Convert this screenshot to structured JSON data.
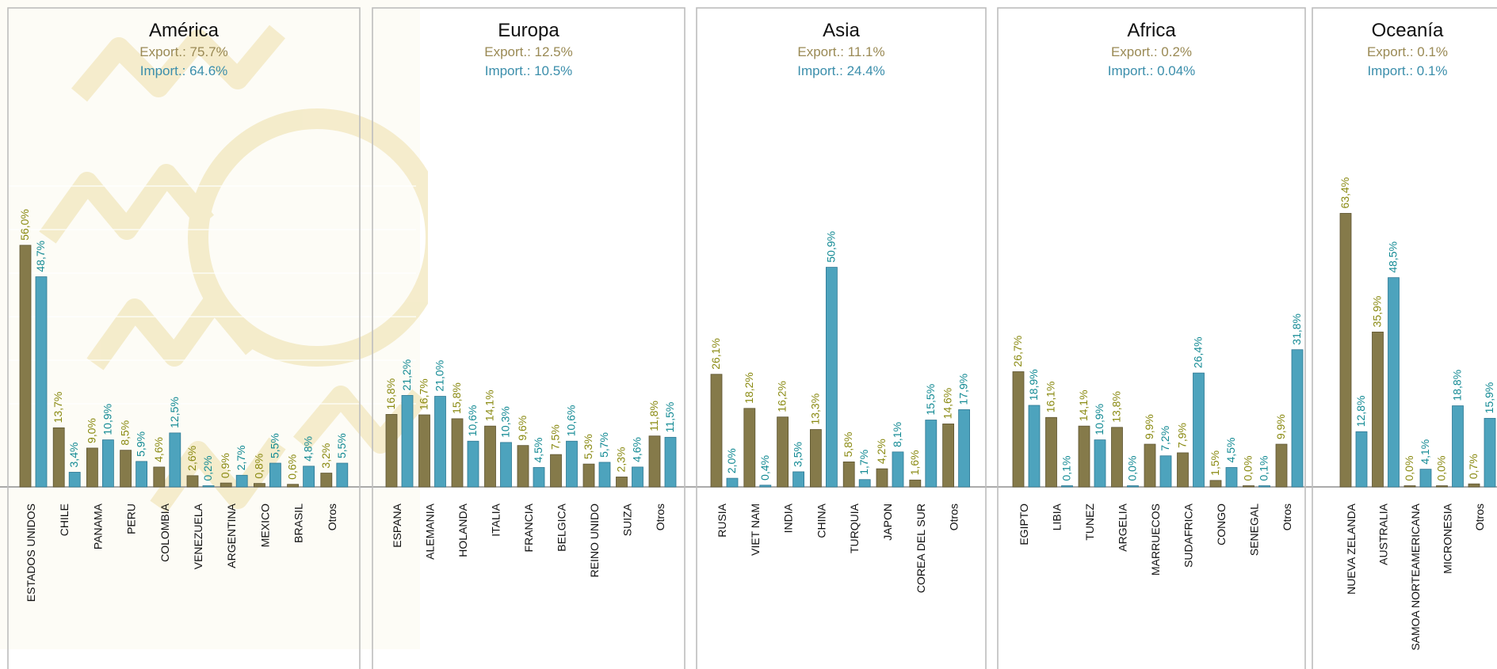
{
  "colors": {
    "export": "#857a4a",
    "import": "#4da3bd",
    "export_label": "#8a8a12",
    "import_label": "#138a94"
  },
  "chart_data": [
    {
      "type": "bar",
      "title": "América",
      "export_label": "Export.:  75.7%",
      "import_label": "Import.: 64.6%",
      "categories": [
        "ESTADOS UNIDOS",
        "CHILE",
        "PANAMA",
        "PERU",
        "COLOMBIA",
        "VENEZUELA",
        "ARGENTINA",
        "MEXICO",
        "BRASIL",
        "Otros"
      ],
      "series": [
        {
          "values": [
            56.0,
            13.7,
            9.0,
            8.5,
            4.6,
            2.6,
            0.9,
            0.8,
            0.6,
            3.2
          ],
          "labels": [
            "56,0%",
            "13,7%",
            "9,0%",
            "8,5%",
            "4,6%",
            "2,6%",
            "0,9%",
            "0,8%",
            "0,6%",
            "3,2%"
          ]
        },
        {
          "values": [
            48.7,
            3.4,
            10.9,
            5.9,
            12.5,
            0.2,
            2.7,
            5.5,
            4.8,
            5.5
          ],
          "labels": [
            "48,7%",
            "3,4%",
            "10,9%",
            "5,9%",
            "12,5%",
            "0,2%",
            "2,7%",
            "5,5%",
            "4,8%",
            "5,5%"
          ]
        }
      ]
    },
    {
      "type": "bar",
      "title": "Europa",
      "export_label": "Export.: 12.5%",
      "import_label": "Import.: 10.5%",
      "categories": [
        "ESPANA",
        "ALEMANIA",
        "HOLANDA",
        "ITALIA",
        "FRANCIA",
        "BELGICA",
        "REINO UNIDO",
        "SUIZA",
        "Otros"
      ],
      "series": [
        {
          "values": [
            16.8,
            16.7,
            15.8,
            14.1,
            9.6,
            7.5,
            5.3,
            2.3,
            11.8
          ],
          "labels": [
            "16,8%",
            "16,7%",
            "15,8%",
            "14,1%",
            "9,6%",
            "7,5%",
            "5,3%",
            "2,3%",
            "11,8%"
          ]
        },
        {
          "values": [
            21.2,
            21.0,
            10.6,
            10.3,
            4.5,
            10.6,
            5.7,
            4.6,
            11.5
          ],
          "labels": [
            "21,2%",
            "21,0%",
            "10,6%",
            "10,3%",
            "4,5%",
            "10,6%",
            "5,7%",
            "4,6%",
            "11,5%"
          ]
        }
      ]
    },
    {
      "type": "bar",
      "title": "Asia",
      "export_label": "Export.: 11.1%",
      "import_label": "Import.: 24.4%",
      "categories": [
        "RUSIA",
        "VIET NAM",
        "INDIA",
        "CHINA",
        "TURQUIA",
        "JAPON",
        "COREA DEL SUR",
        "Otros"
      ],
      "series": [
        {
          "values": [
            26.1,
            18.2,
            16.2,
            13.3,
            5.8,
            4.2,
            1.6,
            14.6
          ],
          "labels": [
            "26,1%",
            "18,2%",
            "16,2%",
            "13,3%",
            "5,8%",
            "4,2%",
            "1,6%",
            "14,6%"
          ]
        },
        {
          "values": [
            2.0,
            0.4,
            3.5,
            50.9,
            1.7,
            8.1,
            15.5,
            17.9
          ],
          "labels": [
            "2,0%",
            "0,4%",
            "3,5%",
            "50,9%",
            "1,7%",
            "8,1%",
            "15,5%",
            "17,9%"
          ]
        }
      ]
    },
    {
      "type": "bar",
      "title": "Africa",
      "export_label": "Export.: 0.2%",
      "import_label": "Import.: 0.04%",
      "categories": [
        "EGIPTO",
        "LIBIA",
        "TUNEZ",
        "ARGELIA",
        "MARRUECOS",
        "SUDAFRICA",
        "CONGO",
        "SENEGAL",
        "Otros"
      ],
      "series": [
        {
          "values": [
            26.7,
            16.1,
            14.1,
            13.8,
            9.9,
            7.9,
            1.5,
            0.0,
            9.9
          ],
          "labels": [
            "26,7%",
            "16,1%",
            "14,1%",
            "13,8%",
            "9,9%",
            "7,9%",
            "1,5%",
            "0,0%",
            "9,9%"
          ]
        },
        {
          "values": [
            18.9,
            0.1,
            10.9,
            0.0,
            7.2,
            26.4,
            4.5,
            0.1,
            31.8
          ],
          "labels": [
            "18,9%",
            "0,1%",
            "10,9%",
            "0,0%",
            "7,2%",
            "26,4%",
            "4,5%",
            "0,1%",
            "31,8%"
          ]
        }
      ]
    },
    {
      "type": "bar",
      "title": "Oceanía",
      "export_label": "Export.: 0.1%",
      "import_label": "Import.: 0.1%",
      "categories": [
        "NUEVA ZELANDA",
        "AUSTRALIA",
        "SAMOA NORTEAMERICANA",
        "MICRONESIA",
        "Otros"
      ],
      "series": [
        {
          "values": [
            63.4,
            35.9,
            0.0,
            0.0,
            0.7
          ],
          "labels": [
            "63,4%",
            "35,9%",
            "0,0%",
            "0,0%",
            "0,7%"
          ]
        },
        {
          "values": [
            12.8,
            48.5,
            4.1,
            18.8,
            15.9
          ],
          "labels": [
            "12,8%",
            "48,5%",
            "4,1%",
            "18,8%",
            "15,9%"
          ]
        }
      ]
    }
  ]
}
